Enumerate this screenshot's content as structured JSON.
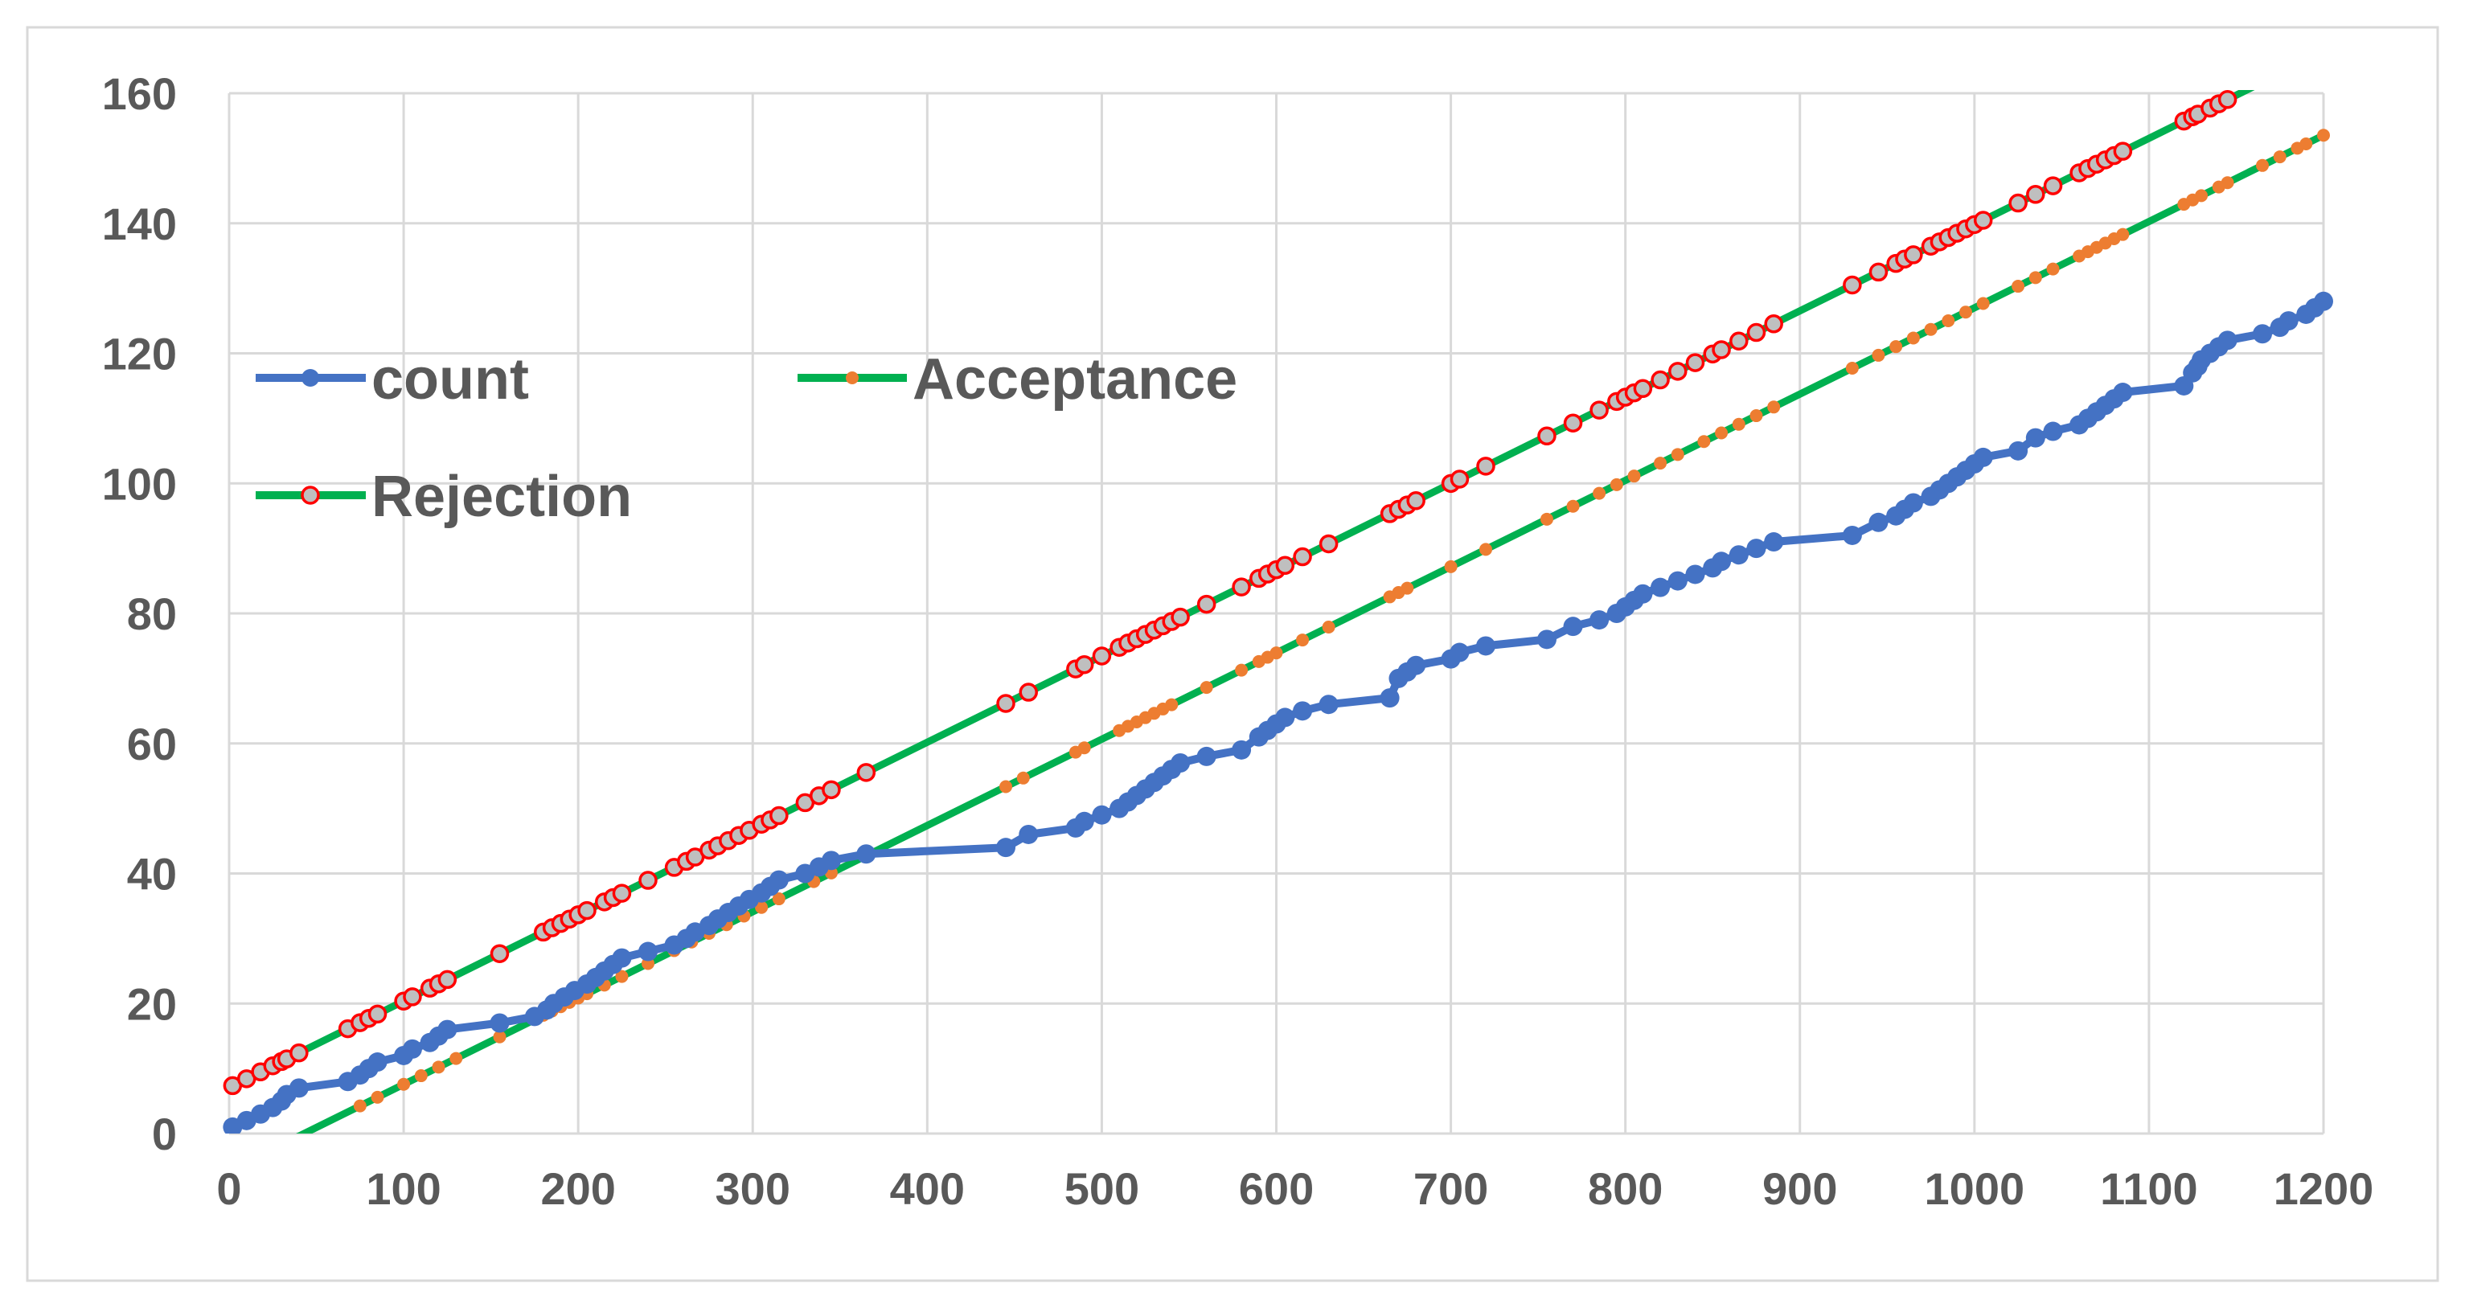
{
  "chart_data": {
    "type": "line",
    "title": "",
    "xlabel": "",
    "ylabel": "",
    "xlim": [
      0,
      1200
    ],
    "ylim": [
      0,
      160
    ],
    "x_ticks": [
      "0",
      "100",
      "200",
      "300",
      "400",
      "500",
      "600",
      "700",
      "800",
      "900",
      "1000",
      "1100",
      "1200"
    ],
    "y_ticks": [
      "0",
      "20",
      "40",
      "60",
      "80",
      "100",
      "120",
      "140",
      "160"
    ],
    "grid": true,
    "legend_position": "top-left",
    "colors": {
      "count_line": "#4472c4",
      "limit_line": "#00b050",
      "acceptance_marker": "#ed7d31",
      "rejection_marker_fill": "#bfbfbf",
      "rejection_marker_edge": "#ff0000",
      "grid": "#d9d9d9",
      "text": "#595959"
    },
    "series": [
      {
        "name": "count",
        "points": [
          [
            2,
            1
          ],
          [
            10,
            2
          ],
          [
            18,
            3
          ],
          [
            25,
            4
          ],
          [
            30,
            5
          ],
          [
            33,
            6
          ],
          [
            40,
            7
          ],
          [
            68,
            8
          ],
          [
            75,
            9
          ],
          [
            80,
            10
          ],
          [
            85,
            11
          ],
          [
            100,
            12
          ],
          [
            105,
            13
          ],
          [
            115,
            14
          ],
          [
            120,
            15
          ],
          [
            125,
            16
          ],
          [
            155,
            17
          ],
          [
            175,
            18
          ],
          [
            182,
            19
          ],
          [
            186,
            20
          ],
          [
            192,
            21
          ],
          [
            198,
            22
          ],
          [
            205,
            23
          ],
          [
            210,
            24
          ],
          [
            215,
            25
          ],
          [
            220,
            26
          ],
          [
            225,
            27
          ],
          [
            240,
            28
          ],
          [
            255,
            29
          ],
          [
            262,
            30
          ],
          [
            267,
            31
          ],
          [
            275,
            32
          ],
          [
            280,
            33
          ],
          [
            286,
            34
          ],
          [
            292,
            35
          ],
          [
            298,
            36
          ],
          [
            305,
            37
          ],
          [
            310,
            38
          ],
          [
            315,
            39
          ],
          [
            330,
            40
          ],
          [
            338,
            41
          ],
          [
            345,
            42
          ],
          [
            365,
            43
          ],
          [
            445,
            44
          ],
          [
            458,
            46
          ],
          [
            485,
            47
          ],
          [
            490,
            48
          ],
          [
            500,
            49
          ],
          [
            510,
            50
          ],
          [
            515,
            51
          ],
          [
            520,
            52
          ],
          [
            525,
            53
          ],
          [
            530,
            54
          ],
          [
            535,
            55
          ],
          [
            540,
            56
          ],
          [
            545,
            57
          ],
          [
            560,
            58
          ],
          [
            580,
            59
          ],
          [
            590,
            61
          ],
          [
            595,
            62
          ],
          [
            600,
            63
          ],
          [
            605,
            64
          ],
          [
            615,
            65
          ],
          [
            630,
            66
          ],
          [
            665,
            67
          ],
          [
            670,
            70
          ],
          [
            675,
            71
          ],
          [
            680,
            72
          ],
          [
            700,
            73
          ],
          [
            705,
            74
          ],
          [
            720,
            75
          ],
          [
            755,
            76
          ],
          [
            770,
            78
          ],
          [
            785,
            79
          ],
          [
            795,
            80
          ],
          [
            800,
            81
          ],
          [
            805,
            82
          ],
          [
            810,
            83
          ],
          [
            820,
            84
          ],
          [
            830,
            85
          ],
          [
            840,
            86
          ],
          [
            850,
            87
          ],
          [
            855,
            88
          ],
          [
            865,
            89
          ],
          [
            875,
            90
          ],
          [
            885,
            91
          ],
          [
            930,
            92
          ],
          [
            945,
            94
          ],
          [
            955,
            95
          ],
          [
            960,
            96
          ],
          [
            965,
            97
          ],
          [
            975,
            98
          ],
          [
            980,
            99
          ],
          [
            985,
            100
          ],
          [
            990,
            101
          ],
          [
            995,
            102
          ],
          [
            1000,
            103
          ],
          [
            1005,
            104
          ],
          [
            1025,
            105
          ],
          [
            1035,
            107
          ],
          [
            1045,
            108
          ],
          [
            1060,
            109
          ],
          [
            1065,
            110
          ],
          [
            1070,
            111
          ],
          [
            1075,
            112
          ],
          [
            1080,
            113
          ],
          [
            1085,
            114
          ],
          [
            1120,
            115
          ],
          [
            1125,
            117
          ],
          [
            1128,
            118
          ],
          [
            1130,
            119
          ],
          [
            1135,
            120
          ],
          [
            1140,
            121
          ],
          [
            1145,
            122
          ],
          [
            1165,
            123
          ],
          [
            1175,
            124
          ],
          [
            1180,
            125
          ],
          [
            1190,
            126
          ],
          [
            1195,
            127
          ],
          [
            1200,
            128
          ]
        ]
      },
      {
        "name": "Acceptance",
        "intercept": -5.7,
        "slope": 0.1327,
        "marker_x": [
          75,
          85,
          100,
          110,
          120,
          130,
          155,
          180,
          185,
          190,
          195,
          200,
          205,
          215,
          225,
          240,
          255,
          265,
          275,
          285,
          295,
          305,
          315,
          335,
          345,
          365,
          445,
          455,
          485,
          490,
          510,
          515,
          520,
          525,
          530,
          535,
          540,
          560,
          580,
          590,
          595,
          600,
          615,
          630,
          665,
          670,
          675,
          700,
          720,
          755,
          770,
          785,
          795,
          805,
          820,
          830,
          845,
          855,
          865,
          875,
          885,
          930,
          945,
          955,
          965,
          975,
          985,
          995,
          1005,
          1025,
          1035,
          1045,
          1060,
          1065,
          1070,
          1075,
          1080,
          1085,
          1120,
          1125,
          1130,
          1140,
          1145,
          1165,
          1175,
          1185,
          1190,
          1200
        ]
      },
      {
        "name": "Rejection",
        "intercept": 7.1,
        "slope": 0.1327,
        "marker_x": [
          2,
          10,
          18,
          25,
          30,
          33,
          40,
          68,
          75,
          80,
          85,
          100,
          105,
          115,
          120,
          125,
          155,
          180,
          185,
          190,
          195,
          200,
          205,
          215,
          220,
          225,
          240,
          255,
          262,
          267,
          275,
          280,
          286,
          292,
          298,
          305,
          310,
          315,
          330,
          338,
          345,
          365,
          445,
          458,
          485,
          490,
          500,
          510,
          515,
          520,
          525,
          530,
          535,
          540,
          545,
          560,
          580,
          590,
          595,
          600,
          605,
          615,
          630,
          665,
          670,
          675,
          680,
          700,
          705,
          720,
          755,
          770,
          785,
          795,
          800,
          805,
          810,
          820,
          830,
          840,
          850,
          855,
          865,
          875,
          885,
          930,
          945,
          955,
          960,
          965,
          975,
          980,
          985,
          990,
          995,
          1000,
          1005,
          1025,
          1035,
          1045,
          1060,
          1065,
          1070,
          1075,
          1080,
          1085,
          1120,
          1125,
          1128,
          1135,
          1140,
          1145
        ]
      }
    ]
  }
}
